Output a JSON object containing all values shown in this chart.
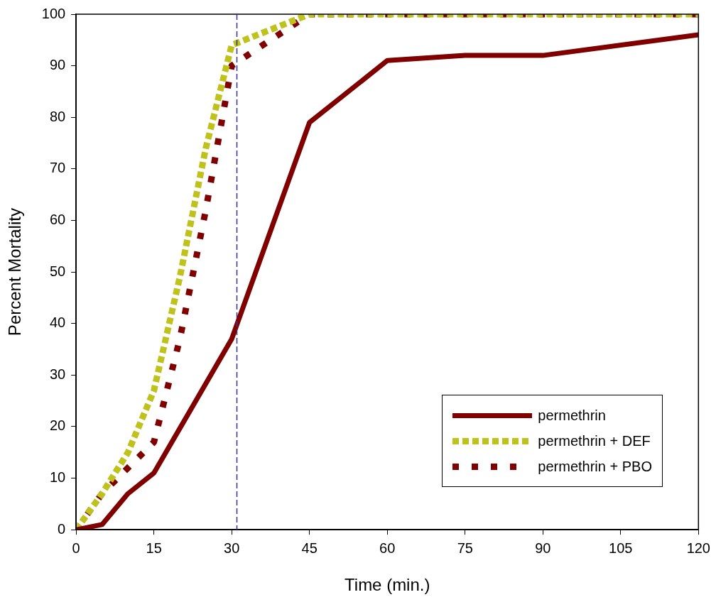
{
  "chart_data": {
    "type": "line",
    "xlabel": "Time (min.)",
    "ylabel": "Percent Mortality",
    "xlim": [
      0,
      120
    ],
    "xticks": [
      0,
      15,
      30,
      45,
      60,
      75,
      90,
      105,
      120
    ],
    "ylim": [
      0,
      100
    ],
    "yticks": [
      0,
      10,
      20,
      30,
      40,
      50,
      60,
      70,
      80,
      90,
      100
    ],
    "grid": false,
    "legend": "bottom right",
    "marker": "none",
    "series": [
      {
        "name": "permethrin",
        "color": "#800000",
        "line_style": "solid",
        "x": [
          0,
          5,
          10,
          15,
          30,
          45,
          60,
          75,
          90,
          120
        ],
        "values": [
          0,
          1,
          7,
          11,
          37,
          79,
          91,
          92,
          92,
          96
        ]
      },
      {
        "name": "permethrin + DEF",
        "color": "#bfc21a",
        "line_style": "dotted",
        "x": [
          0,
          5,
          10,
          15,
          20,
          25,
          30,
          45,
          60,
          75,
          90,
          105,
          120
        ],
        "values": [
          0,
          7,
          15,
          27,
          49,
          74,
          94,
          100,
          100,
          100,
          100,
          100,
          100
        ]
      },
      {
        "name": "permethrin + PBO",
        "color": "#800000",
        "line_style": "dashed",
        "x": [
          0,
          5,
          10,
          15,
          20,
          25,
          30,
          45,
          60,
          75,
          90,
          105,
          120
        ],
        "values": [
          0,
          7,
          12,
          17,
          37,
          62,
          90,
          100,
          100,
          100,
          100,
          100,
          100
        ]
      }
    ],
    "ref_lines": [
      {
        "axis": "x",
        "value": 31,
        "color": "#333399",
        "line_style": "dashed"
      }
    ]
  }
}
